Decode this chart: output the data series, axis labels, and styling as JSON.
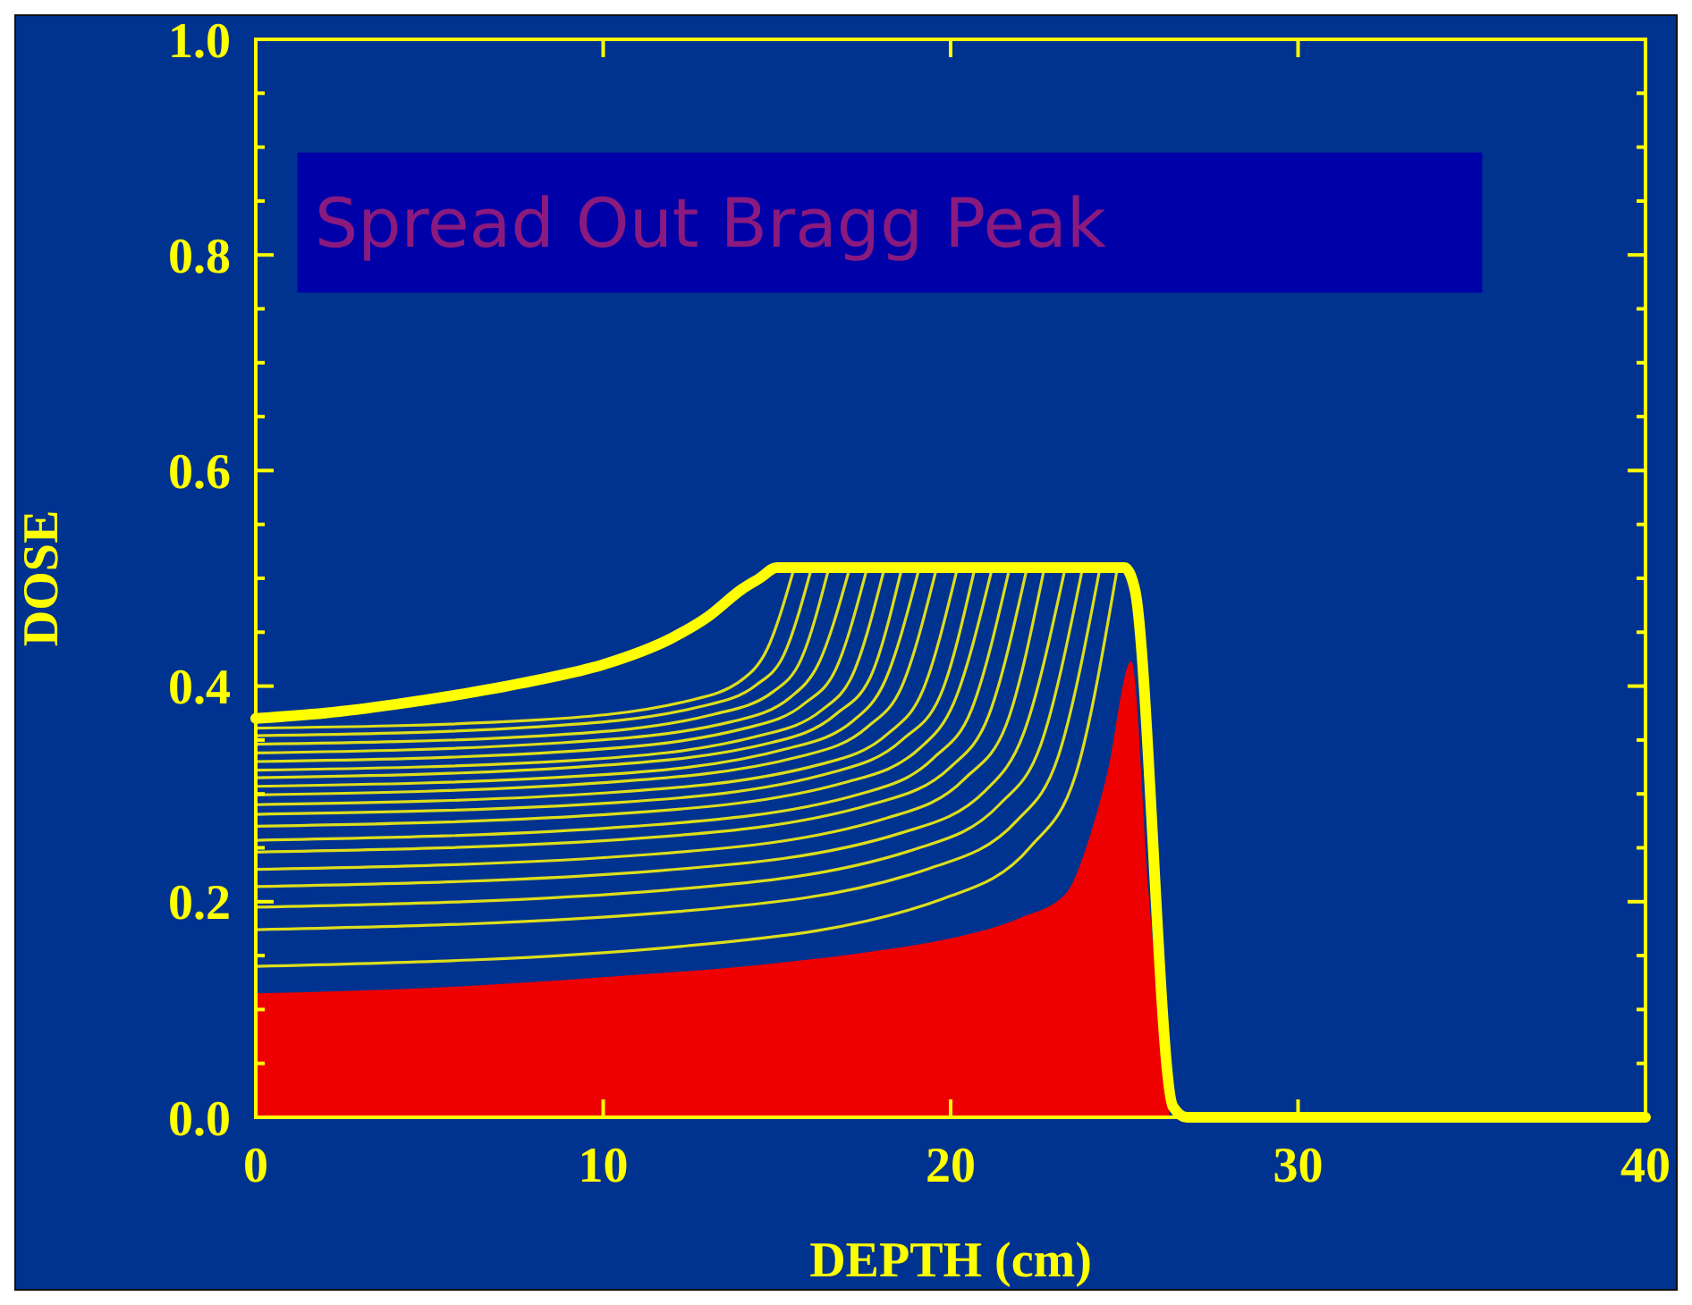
{
  "chart_data": {
    "type": "line",
    "title": "Spread Out Bragg Peak",
    "xlabel": "DEPTH (cm)",
    "ylabel": "DOSE",
    "xlim": [
      0,
      40
    ],
    "xticks": [
      0,
      10,
      20,
      30,
      40
    ],
    "ylim": [
      0,
      1
    ],
    "yticks": [
      {
        "value": 0,
        "label": "0.0"
      },
      {
        "value": 0.05,
        "label": null
      },
      {
        "value": 0.1,
        "label": null
      },
      {
        "value": 0.15,
        "label": null
      },
      {
        "value": 0.2,
        "label": "0.2"
      },
      {
        "value": 0.25,
        "label": null
      },
      {
        "value": 0.3,
        "label": null
      },
      {
        "value": 0.35,
        "label": null
      },
      {
        "value": 0.4,
        "label": "0.4"
      },
      {
        "value": 0.45,
        "label": null
      },
      {
        "value": 0.5,
        "label": null
      },
      {
        "value": 0.55,
        "label": null
      },
      {
        "value": 0.6,
        "label": "0.6"
      },
      {
        "value": 0.65,
        "label": null
      },
      {
        "value": 0.7,
        "label": null
      },
      {
        "value": 0.75,
        "label": null
      },
      {
        "value": 0.8,
        "label": "0.8"
      },
      {
        "value": 0.85,
        "label": null
      },
      {
        "value": 0.9,
        "label": null
      },
      {
        "value": 0.95,
        "label": null
      },
      {
        "value": 1,
        "label": "1.0"
      }
    ],
    "grid": false,
    "series": [
      {
        "type": "area",
        "color": "#ee0000",
        "x": [
          0,
          5,
          10,
          15,
          18,
          20,
          22,
          23.3,
          24,
          24.5,
          25.2,
          25.7,
          26.3
        ],
        "values": [
          0.115,
          0.12,
          0.13,
          0.143,
          0.155,
          0.166,
          0.185,
          0.207,
          0.26,
          0.318,
          0.423,
          0.207,
          0
        ]
      },
      {
        "type": "line",
        "color": "#dede1a",
        "x": [
          0,
          7.8,
          12.4,
          14.0,
          14.7,
          15.5
        ],
        "values": [
          0.361,
          0.368,
          0.386,
          0.406,
          0.433,
          0.51
        ]
      },
      {
        "type": "line",
        "color": "#dede1a",
        "x": [
          0,
          8.0,
          12.8,
          14.4,
          15.2,
          16.0
        ],
        "values": [
          0.354,
          0.362,
          0.381,
          0.401,
          0.429,
          0.51
        ]
      },
      {
        "type": "line",
        "color": "#dede1a",
        "x": [
          0,
          8.3,
          13.2,
          14.9,
          15.7,
          16.5
        ],
        "values": [
          0.346,
          0.354,
          0.374,
          0.395,
          0.425,
          0.51
        ]
      },
      {
        "type": "line",
        "color": "#dede1a",
        "x": [
          0,
          8.6,
          13.7,
          15.4,
          16.2,
          17.1
        ],
        "values": [
          0.338,
          0.347,
          0.367,
          0.39,
          0.421,
          0.51
        ]
      },
      {
        "type": "line",
        "color": "#dede1a",
        "x": [
          0,
          8.8,
          14.1,
          15.8,
          16.7,
          17.6
        ],
        "values": [
          0.33,
          0.339,
          0.361,
          0.384,
          0.416,
          0.51
        ]
      },
      {
        "type": "line",
        "color": "#dede1a",
        "x": [
          0,
          9.1,
          14.5,
          16.3,
          17.2,
          18.1
        ],
        "values": [
          0.322,
          0.331,
          0.354,
          0.378,
          0.412,
          0.51
        ]
      },
      {
        "type": "line",
        "color": "#dede1a",
        "x": [
          0,
          9.3,
          14.9,
          16.7,
          17.7,
          18.6
        ],
        "values": [
          0.315,
          0.325,
          0.348,
          0.374,
          0.409,
          0.51
        ]
      },
      {
        "type": "line",
        "color": "#dede1a",
        "x": [
          0,
          9.6,
          15.3,
          17.2,
          18.1,
          19.1
        ],
        "values": [
          0.307,
          0.317,
          0.342,
          0.368,
          0.404,
          0.51
        ]
      },
      {
        "type": "line",
        "color": "#dede1a",
        "x": [
          0,
          9.8,
          15.7,
          17.6,
          18.6,
          19.6
        ],
        "values": [
          0.299,
          0.31,
          0.335,
          0.362,
          0.4,
          0.51
        ]
      },
      {
        "type": "line",
        "color": "#dede1a",
        "x": [
          0,
          10.1,
          16.2,
          18.2,
          19.2,
          20.2
        ],
        "values": [
          0.29,
          0.301,
          0.327,
          0.356,
          0.396,
          0.51
        ]
      },
      {
        "type": "line",
        "color": "#dede1a",
        "x": [
          0,
          10.4,
          16.6,
          18.6,
          19.7,
          20.7
        ],
        "values": [
          0.281,
          0.292,
          0.32,
          0.35,
          0.391,
          0.51
        ]
      },
      {
        "type": "line",
        "color": "#dede1a",
        "x": [
          0,
          10.6,
          17.0,
          19.1,
          20.1,
          21.2
        ],
        "values": [
          0.27,
          0.282,
          0.311,
          0.342,
          0.385,
          0.51
        ]
      },
      {
        "type": "line",
        "color": "#dede1a",
        "x": [
          0,
          10.9,
          17.4,
          19.5,
          20.6,
          21.7
        ],
        "values": [
          0.257,
          0.27,
          0.3,
          0.333,
          0.378,
          0.51
        ]
      },
      {
        "type": "line",
        "color": "#dede1a",
        "x": [
          0,
          11.1,
          17.8,
          20.0,
          21.1,
          22.2
        ],
        "values": [
          0.246,
          0.259,
          0.291,
          0.325,
          0.373,
          0.51
        ]
      },
      {
        "type": "line",
        "color": "#dede1a",
        "x": [
          0,
          11.4,
          18.2,
          20.4,
          21.6,
          22.7
        ],
        "values": [
          0.23,
          0.244,
          0.278,
          0.314,
          0.364,
          0.51
        ]
      },
      {
        "type": "line",
        "color": "#dede1a",
        "x": [
          0,
          11.7,
          18.6,
          21.0,
          22.1,
          23.3
        ],
        "values": [
          0.214,
          0.229,
          0.264,
          0.303,
          0.356,
          0.51
        ]
      },
      {
        "type": "line",
        "color": "#dede1a",
        "x": [
          0,
          11.9,
          19.0,
          21.4,
          22.6,
          23.8
        ],
        "values": [
          0.195,
          0.211,
          0.249,
          0.29,
          0.346,
          0.51
        ]
      },
      {
        "type": "line",
        "color": "#dede1a",
        "x": [
          0,
          12.2,
          19.4,
          21.9,
          23.1,
          24.3
        ],
        "values": [
          0.174,
          0.191,
          0.231,
          0.275,
          0.335,
          0.51
        ]
      },
      {
        "type": "line",
        "color": "#dede1a",
        "x": [
          0,
          12.4,
          19.8,
          22.3,
          23.6,
          24.8
        ],
        "values": [
          0.14,
          0.159,
          0.203,
          0.251,
          0.318,
          0.51
        ]
      },
      {
        "type": "line",
        "color": "#ffff00",
        "x": [
          0,
          2,
          4,
          6,
          8,
          10,
          12,
          13,
          14,
          14.5,
          15,
          25,
          25.3,
          26.4,
          26.8,
          40
        ],
        "values": [
          0.37,
          0.375,
          0.383,
          0.393,
          0.405,
          0.42,
          0.445,
          0.464,
          0.49,
          0.5,
          0.51,
          0.51,
          0.49,
          0.01,
          0,
          0
        ]
      }
    ]
  }
}
